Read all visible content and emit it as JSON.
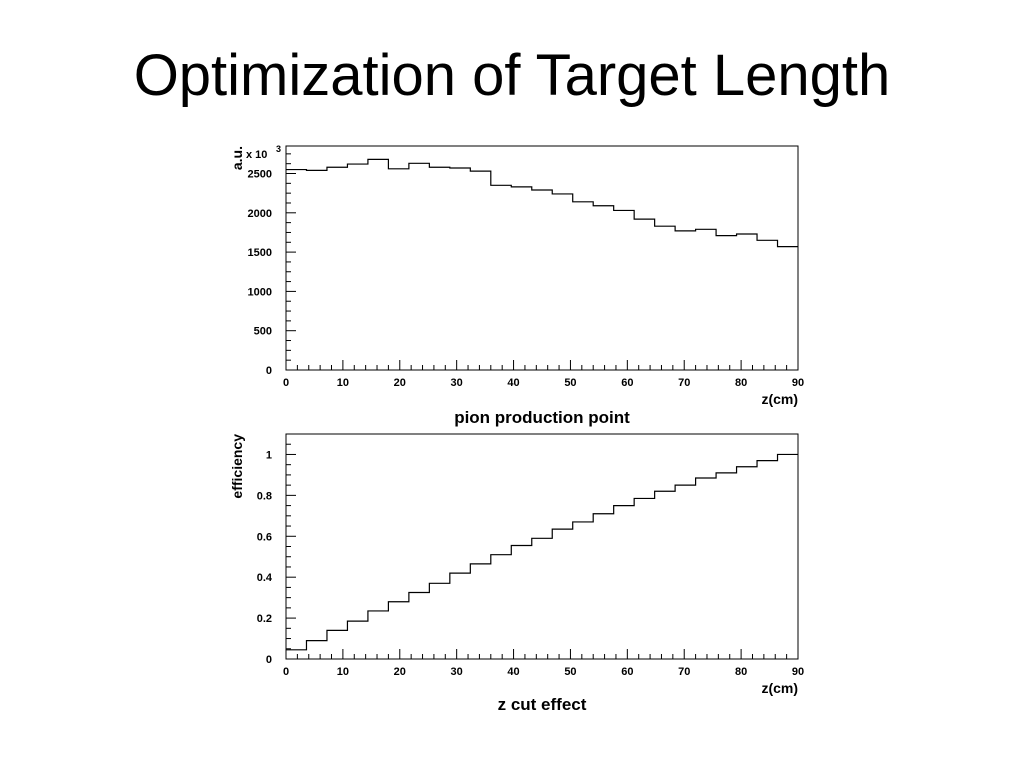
{
  "slide": {
    "title": "Optimization of Target Length"
  },
  "chart_data": [
    {
      "type": "line",
      "style": "step-histogram",
      "title": "pion production point",
      "xlabel": "z(cm)",
      "ylabel": "a.u.",
      "y_multiplier_label": "x 10",
      "y_multiplier_exponent": "3",
      "xlim": [
        0,
        90
      ],
      "ylim": [
        0,
        2850
      ],
      "x_ticks": [
        0,
        10,
        20,
        30,
        40,
        50,
        60,
        70,
        80,
        90
      ],
      "y_ticks": [
        0,
        500,
        1000,
        1500,
        2000,
        2500
      ],
      "bin_edges": [
        0,
        3.6,
        7.2,
        10.8,
        14.4,
        18.0,
        21.6,
        25.2,
        28.8,
        32.4,
        36.0,
        39.6,
        43.2,
        46.8,
        50.4,
        54.0,
        57.6,
        61.2,
        64.8,
        68.4,
        72.0,
        75.6,
        79.2,
        82.8,
        86.4,
        90.0
      ],
      "values": [
        2550,
        2540,
        2580,
        2620,
        2680,
        2560,
        2630,
        2580,
        2570,
        2530,
        2350,
        2330,
        2290,
        2240,
        2140,
        2090,
        2030,
        1920,
        1830,
        1770,
        1790,
        1710,
        1730,
        1650,
        1570
      ],
      "grid": false
    },
    {
      "type": "line",
      "style": "step-histogram",
      "title": "z cut effect",
      "xlabel": "z(cm)",
      "ylabel": "efficiency",
      "xlim": [
        0,
        90
      ],
      "ylim": [
        0,
        1.1
      ],
      "x_ticks": [
        0,
        10,
        20,
        30,
        40,
        50,
        60,
        70,
        80,
        90
      ],
      "y_ticks": [
        0,
        0.2,
        0.4,
        0.6,
        0.8,
        1
      ],
      "y_tick_labels": [
        "0",
        "0.2",
        "0.4",
        "0.6",
        "0.8",
        "1"
      ],
      "bin_edges": [
        0,
        3.6,
        7.2,
        10.8,
        14.4,
        18.0,
        21.6,
        25.2,
        28.8,
        32.4,
        36.0,
        39.6,
        43.2,
        46.8,
        50.4,
        54.0,
        57.6,
        61.2,
        64.8,
        68.4,
        72.0,
        75.6,
        79.2,
        82.8,
        86.4,
        90.0
      ],
      "values": [
        0.045,
        0.09,
        0.14,
        0.185,
        0.235,
        0.28,
        0.325,
        0.37,
        0.42,
        0.465,
        0.51,
        0.555,
        0.59,
        0.635,
        0.67,
        0.71,
        0.75,
        0.785,
        0.82,
        0.85,
        0.885,
        0.91,
        0.94,
        0.97,
        1.0
      ],
      "grid": false
    }
  ]
}
